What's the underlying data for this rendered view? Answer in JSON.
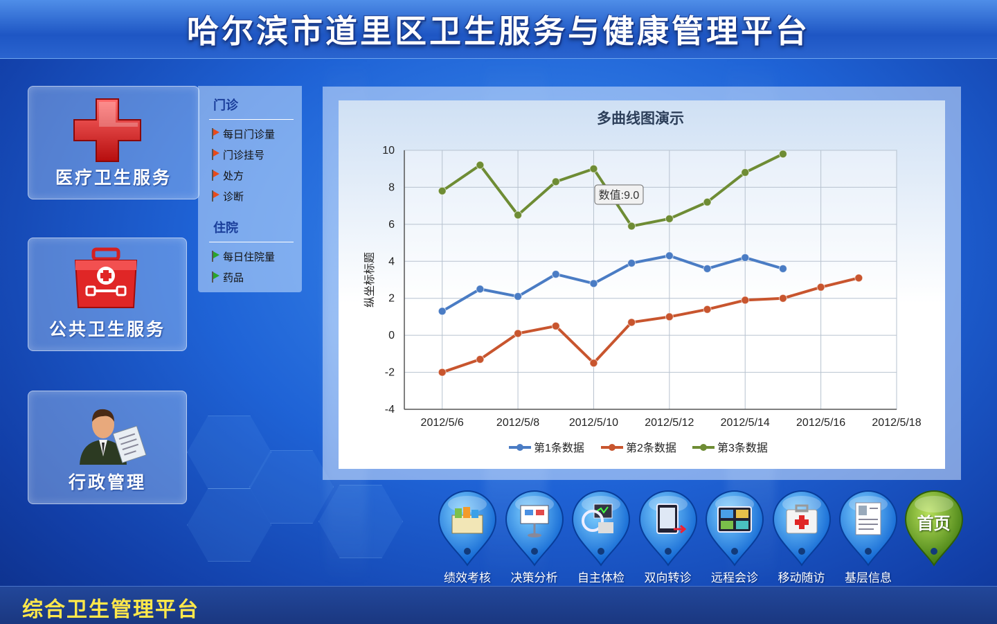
{
  "header": {
    "title": "哈尔滨市道里区卫生服务与健康管理平台"
  },
  "services": [
    {
      "label": "医疗卫生服务",
      "icon": "red-cross-icon"
    },
    {
      "label": "公共卫生服务",
      "icon": "medical-kit-icon"
    },
    {
      "label": "行政管理",
      "icon": "administrator-icon"
    }
  ],
  "submenu": {
    "groups": [
      {
        "title": "门诊",
        "items": [
          "每日门诊量",
          "门诊挂号",
          "处方",
          "诊断"
        ],
        "flag_color": "#e84a1a"
      },
      {
        "title": "住院",
        "items": [
          "每日住院量",
          "药品"
        ],
        "flag_color": "#2aa42a"
      }
    ]
  },
  "chart_data": {
    "type": "line",
    "title": "多曲线图演示",
    "xlabel": "",
    "ylabel": "纵坐标标题",
    "x": [
      "2012/5/6",
      "2012/5/7",
      "2012/5/8",
      "2012/5/9",
      "2012/5/10",
      "2012/5/11",
      "2012/5/12",
      "2012/5/13",
      "2012/5/14",
      "2012/5/15",
      "2012/5/16",
      "2012/5/17"
    ],
    "x_ticks": [
      "2012/5/6",
      "2012/5/8",
      "2012/5/10",
      "2012/5/12",
      "2012/5/14",
      "2012/5/16",
      "2012/5/18"
    ],
    "ylim": [
      -4,
      10
    ],
    "y_ticks": [
      10,
      8,
      6,
      4,
      2,
      0,
      -2,
      -4
    ],
    "grid": true,
    "legend": "bottom",
    "series": [
      {
        "name": "第1条数据",
        "color": "#4a7cc4",
        "values": [
          1.3,
          2.5,
          2.1,
          3.3,
          2.8,
          3.9,
          4.3,
          3.6,
          4.2,
          3.6,
          null,
          null
        ]
      },
      {
        "name": "第2条数据",
        "color": "#c8552e",
        "values": [
          -2.0,
          -1.3,
          0.1,
          0.5,
          -1.5,
          0.7,
          1.0,
          1.4,
          1.9,
          2.0,
          2.6,
          3.1
        ]
      },
      {
        "name": "第3条数据",
        "color": "#6e8c34",
        "values": [
          7.8,
          9.2,
          6.5,
          8.3,
          9.0,
          5.9,
          6.3,
          7.2,
          8.8,
          9.8,
          null,
          null
        ]
      }
    ],
    "tooltip": {
      "text": "数值:9.0"
    }
  },
  "nav": [
    {
      "label": "绩效考核",
      "icon": "folders-icon"
    },
    {
      "label": "决策分析",
      "icon": "presentation-board-icon"
    },
    {
      "label": "自主体检",
      "icon": "health-kiosk-icon"
    },
    {
      "label": "双向转诊",
      "icon": "tablet-transfer-icon"
    },
    {
      "label": "远程会诊",
      "icon": "video-grid-icon"
    },
    {
      "label": "移动随访",
      "icon": "first-aid-case-icon"
    },
    {
      "label": "基层信息",
      "icon": "document-profile-icon"
    }
  ],
  "home": {
    "label": "首页"
  },
  "footer": {
    "text": "综合卫生管理平台"
  }
}
